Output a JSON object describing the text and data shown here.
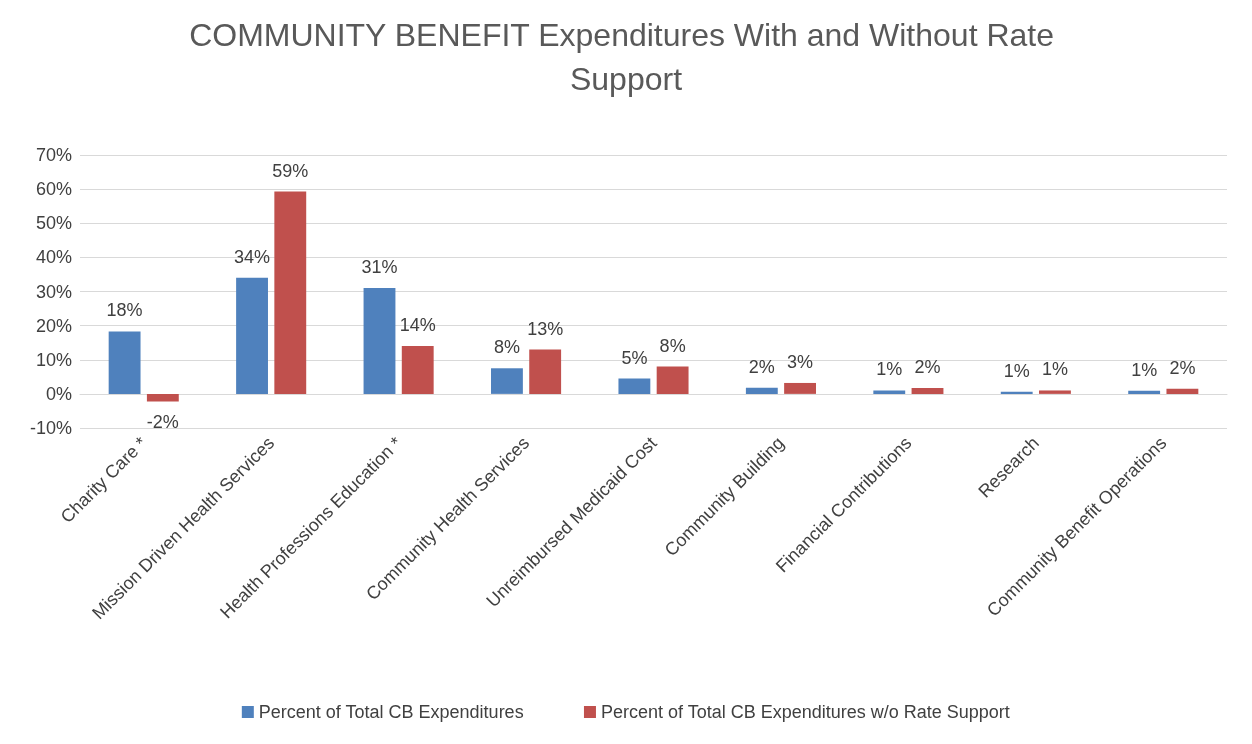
{
  "chart_data": {
    "type": "bar",
    "title": "COMMUNITY BENEFIT Expenditures With and Without Rate Support",
    "categories": [
      "Charity Care *",
      "Mission Driven Health Services",
      "Health Professions Education *",
      "Community Health Services",
      "Unreimbursed Medicaid Cost",
      "Community Building",
      "Financial Contributions",
      "Research",
      "Community Benefit Operations"
    ],
    "series": [
      {
        "name": "Percent of Total CB Expenditures",
        "color": "#4f81bd",
        "values": [
          18.3,
          34,
          31,
          7.5,
          4.5,
          1.8,
          1.0,
          0.6,
          0.9
        ],
        "value_labels": [
          "18%",
          "34%",
          "31%",
          "8%",
          "5%",
          "2%",
          "1%",
          "1%",
          "1%"
        ]
      },
      {
        "name": "Percent of Total CB Expenditures w/o Rate Support",
        "color": "#c0504d",
        "values": [
          -2.2,
          59.3,
          14,
          13,
          8,
          3.2,
          1.7,
          1.0,
          1.5
        ],
        "value_labels": [
          "-2%",
          "59%",
          "14%",
          "13%",
          "8%",
          "3%",
          "2%",
          "1%",
          "2%"
        ]
      }
    ],
    "ylim": [
      -10,
      70
    ],
    "yticks": [
      {
        "value": -10,
        "label": "-10%"
      },
      {
        "value": 0,
        "label": "0%"
      },
      {
        "value": 10,
        "label": "10%"
      },
      {
        "value": 20,
        "label": "20%"
      },
      {
        "value": 30,
        "label": "30%"
      },
      {
        "value": 40,
        "label": "40%"
      },
      {
        "value": 50,
        "label": "50%"
      },
      {
        "value": 60,
        "label": "60%"
      },
      {
        "value": 70,
        "label": "70%"
      }
    ],
    "grid": "y",
    "legend": "bottom"
  }
}
